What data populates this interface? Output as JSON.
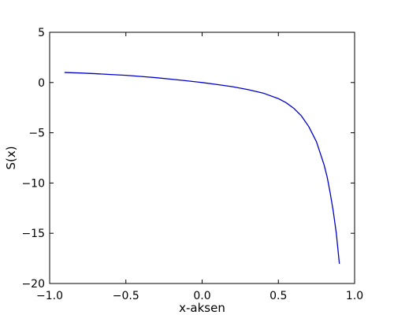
{
  "chart_data": {
    "type": "line",
    "title": "",
    "xlabel": "x-aksen",
    "ylabel": "S(x)",
    "xlim": [
      -1.0,
      1.0
    ],
    "ylim": [
      -20,
      5
    ],
    "grid": false,
    "legend": "none",
    "x_ticks": [
      -1.0,
      -0.5,
      0.0,
      0.5,
      1.0
    ],
    "x_tick_labels": [
      "−1.0",
      "−0.5",
      "0.0",
      "0.5",
      "1.0"
    ],
    "y_ticks": [
      5,
      0,
      -5,
      -10,
      -15,
      -20
    ],
    "y_tick_labels": [
      "5",
      "0",
      "−5",
      "−10",
      "−15",
      "−20"
    ],
    "series": [
      {
        "color": "#0000cc",
        "x": [
          -0.9,
          -0.8,
          -0.7,
          -0.6,
          -0.5,
          -0.4,
          -0.3,
          -0.2,
          -0.1,
          0.0,
          0.1,
          0.2,
          0.3,
          0.4,
          0.5,
          0.55,
          0.6,
          0.65,
          0.7,
          0.75,
          0.8,
          0.82,
          0.84,
          0.86,
          0.88,
          0.9
        ],
        "y": [
          1.0,
          0.95,
          0.88,
          0.8,
          0.72,
          0.6,
          0.48,
          0.33,
          0.17,
          0.0,
          -0.2,
          -0.42,
          -0.7,
          -1.05,
          -1.6,
          -2.0,
          -2.55,
          -3.3,
          -4.4,
          -5.9,
          -8.2,
          -9.4,
          -11.0,
          -12.8,
          -15.0,
          -18.0
        ]
      }
    ]
  }
}
